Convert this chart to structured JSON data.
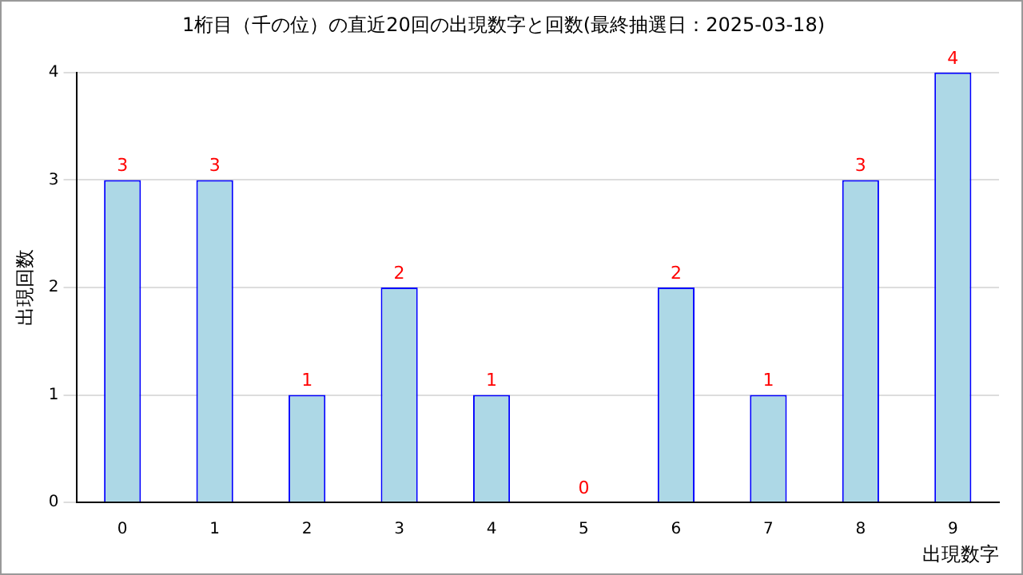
{
  "chart_data": {
    "type": "bar",
    "title": "1桁目（千の位）の直近20回の出現数字と回数(最終抽選日：2025-03-18)",
    "xlabel": "出現数字",
    "ylabel": "出現回数",
    "categories": [
      "0",
      "1",
      "2",
      "3",
      "4",
      "5",
      "6",
      "7",
      "8",
      "9"
    ],
    "series": [
      {
        "color": "#add8e6",
        "values": [
          3,
          3,
          1,
          2,
          1,
          0,
          2,
          1,
          3,
          4
        ]
      }
    ],
    "ylim": [
      0,
      4
    ],
    "yticks": [
      0,
      1,
      2,
      3,
      4
    ],
    "grid": "y",
    "legend": false,
    "data_labels": true
  }
}
